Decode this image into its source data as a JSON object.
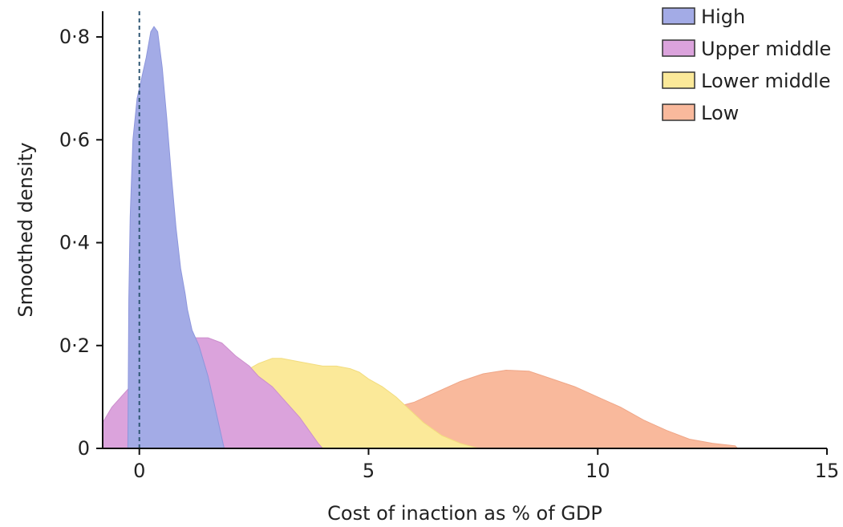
{
  "chart_data": {
    "type": "area",
    "xlabel": "Cost of inaction as % of GDP",
    "ylabel": "Smoothed density",
    "xlim": [
      -0.8,
      15
    ],
    "ylim": [
      0,
      0.85
    ],
    "x_ticks": [
      0,
      5,
      10,
      15
    ],
    "x_tick_labels": [
      "0",
      "5",
      "10",
      "15"
    ],
    "y_ticks": [
      0,
      0.2,
      0.4,
      0.6,
      0.8
    ],
    "y_tick_labels": [
      "0",
      "0·2",
      "0·4",
      "0·6",
      "0·8"
    ],
    "reference_line": {
      "x": 0,
      "style": "dashed",
      "color": "#2f5673"
    },
    "legend_position": "top-right",
    "draw_order": [
      "Low",
      "Lower middle",
      "Upper middle",
      "High"
    ],
    "series": [
      {
        "name": "High",
        "color": "#a3abe6",
        "edge": "#8d96dc",
        "points": [
          [
            -0.25,
            0
          ],
          [
            -0.23,
            0.29
          ],
          [
            -0.2,
            0.45
          ],
          [
            -0.14,
            0.6
          ],
          [
            -0.05,
            0.68
          ],
          [
            0.05,
            0.72
          ],
          [
            0.15,
            0.76
          ],
          [
            0.25,
            0.81
          ],
          [
            0.32,
            0.82
          ],
          [
            0.4,
            0.81
          ],
          [
            0.5,
            0.74
          ],
          [
            0.6,
            0.64
          ],
          [
            0.7,
            0.53
          ],
          [
            0.8,
            0.43
          ],
          [
            0.9,
            0.35
          ],
          [
            1.0,
            0.3
          ],
          [
            1.05,
            0.27
          ],
          [
            1.1,
            0.25
          ],
          [
            1.15,
            0.23
          ],
          [
            1.2,
            0.22
          ],
          [
            1.3,
            0.2
          ],
          [
            1.4,
            0.17
          ],
          [
            1.5,
            0.14
          ],
          [
            1.6,
            0.1
          ],
          [
            1.7,
            0.06
          ],
          [
            1.8,
            0.02
          ],
          [
            1.85,
            0
          ]
        ]
      },
      {
        "name": "Upper middle",
        "color": "#dba3dc",
        "edge": "#cc8fcd",
        "points": [
          [
            -0.8,
            0
          ],
          [
            -0.8,
            0.05
          ],
          [
            -0.6,
            0.08
          ],
          [
            -0.3,
            0.11
          ],
          [
            0,
            0.14
          ],
          [
            0.3,
            0.17
          ],
          [
            0.6,
            0.19
          ],
          [
            0.9,
            0.21
          ],
          [
            1.2,
            0.215
          ],
          [
            1.5,
            0.215
          ],
          [
            1.8,
            0.205
          ],
          [
            2.1,
            0.18
          ],
          [
            2.4,
            0.16
          ],
          [
            2.6,
            0.14
          ],
          [
            2.9,
            0.12
          ],
          [
            3.2,
            0.09
          ],
          [
            3.5,
            0.06
          ],
          [
            3.7,
            0.035
          ],
          [
            3.9,
            0.01
          ],
          [
            4.0,
            0
          ]
        ]
      },
      {
        "name": "Lower middle",
        "color": "#fbe999",
        "edge": "#f2dc7e",
        "points": [
          [
            -0.3,
            0
          ],
          [
            -0.2,
            0.005
          ],
          [
            0,
            0.015
          ],
          [
            0.2,
            0.03
          ],
          [
            0.5,
            0.05
          ],
          [
            0.8,
            0.07
          ],
          [
            1.1,
            0.085
          ],
          [
            1.4,
            0.1
          ],
          [
            1.7,
            0.115
          ],
          [
            2.0,
            0.135
          ],
          [
            2.3,
            0.15
          ],
          [
            2.6,
            0.165
          ],
          [
            2.9,
            0.175
          ],
          [
            3.1,
            0.175
          ],
          [
            3.4,
            0.17
          ],
          [
            3.7,
            0.165
          ],
          [
            4.0,
            0.16
          ],
          [
            4.3,
            0.16
          ],
          [
            4.6,
            0.155
          ],
          [
            4.8,
            0.148
          ],
          [
            5.0,
            0.135
          ],
          [
            5.3,
            0.12
          ],
          [
            5.6,
            0.1
          ],
          [
            5.9,
            0.075
          ],
          [
            6.2,
            0.05
          ],
          [
            6.6,
            0.025
          ],
          [
            7.0,
            0.01
          ],
          [
            7.4,
            0
          ]
        ]
      },
      {
        "name": "Low",
        "color": "#f9b99c",
        "edge": "#efa687",
        "points": [
          [
            -0.1,
            0
          ],
          [
            0.2,
            0.01
          ],
          [
            0.5,
            0.02
          ],
          [
            1.0,
            0.032
          ],
          [
            1.5,
            0.042
          ],
          [
            2.0,
            0.05
          ],
          [
            2.5,
            0.052
          ],
          [
            3.0,
            0.052
          ],
          [
            3.5,
            0.048
          ],
          [
            4.0,
            0.05
          ],
          [
            4.5,
            0.06
          ],
          [
            5.0,
            0.068
          ],
          [
            5.5,
            0.078
          ],
          [
            6.0,
            0.09
          ],
          [
            6.5,
            0.11
          ],
          [
            7.0,
            0.13
          ],
          [
            7.5,
            0.145
          ],
          [
            8.0,
            0.152
          ],
          [
            8.5,
            0.15
          ],
          [
            9.0,
            0.135
          ],
          [
            9.5,
            0.12
          ],
          [
            10.0,
            0.1
          ],
          [
            10.5,
            0.08
          ],
          [
            11.0,
            0.055
          ],
          [
            11.5,
            0.035
          ],
          [
            12.0,
            0.018
          ],
          [
            12.5,
            0.01
          ],
          [
            13.0,
            0.005
          ],
          [
            13.05,
            0
          ]
        ]
      }
    ]
  }
}
